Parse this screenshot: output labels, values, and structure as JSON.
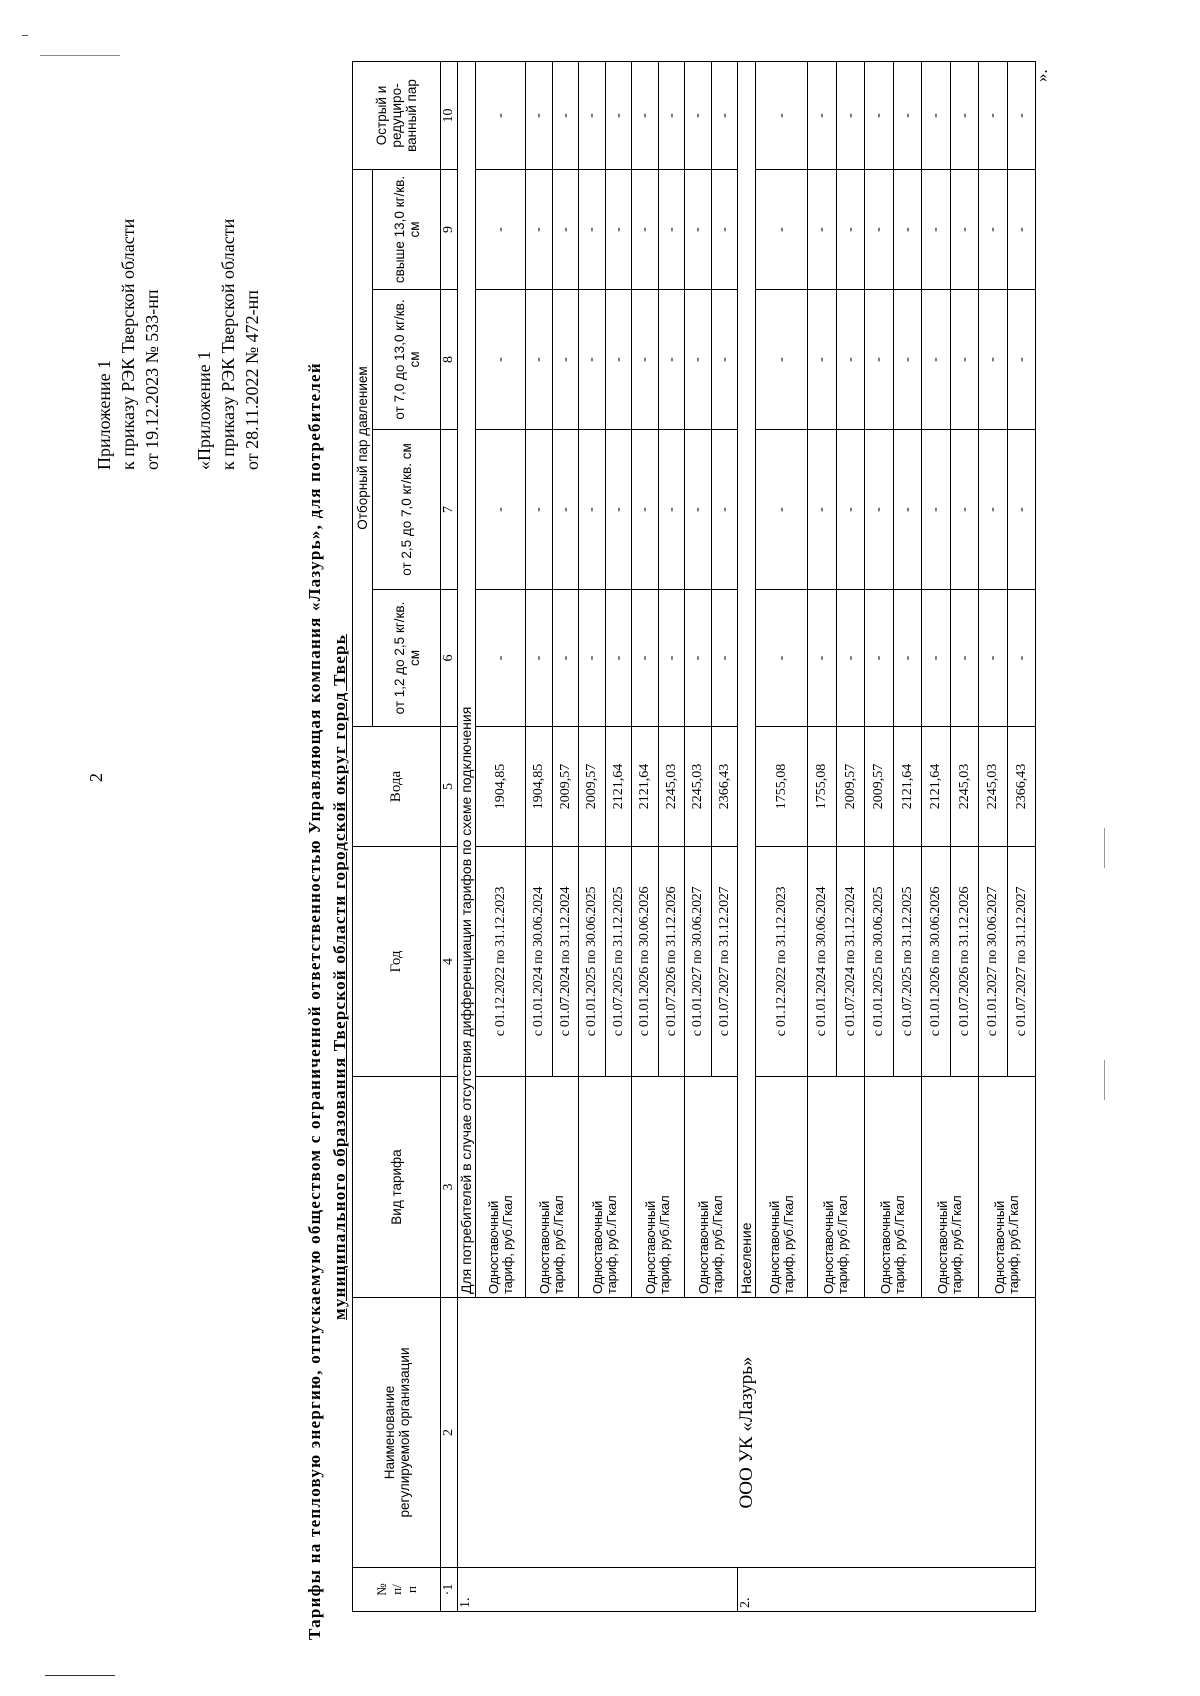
{
  "page_number": "2",
  "annex_new": {
    "line1": "Приложение 1",
    "line2": "к приказу РЭК Тверской области",
    "line3": "от 19.12.2023 № 533-нп"
  },
  "annex_old": {
    "line1": "«Приложение 1",
    "line2": "к приказу РЭК Тверской области",
    "line3": "от 28.11.2022 № 472-нп"
  },
  "title": {
    "line1": "Тарифы на тепловую энергию, отпускаемую обществом с ограниченной ответственностью Управляющая компания «Лазурь», для потребителей",
    "line2": "муниципального образования Тверской области городской округ город Тверь"
  },
  "table": {
    "headers": {
      "col1": "№\nп/\nп",
      "col2": "Наименование\nрегулируемой организации",
      "col3": "Вид тарифа",
      "col4": "Год",
      "col5": "Вода",
      "steam_group": "Отборный пар давлением",
      "col6": "от 1,2 до 2,5 кг/кв. см",
      "col7": "от 2,5 до 7,0 кг/кв. см",
      "col8": "от 7,0 до 13,0 кг/кв. см",
      "col9": "свыше 13,0 кг/кв. см",
      "col10": "Острый и редуциро-ванный пар"
    },
    "column_numbers": [
      "·1",
      "2",
      "3",
      "4",
      "5",
      "6",
      "7",
      "8",
      "9",
      "10"
    ],
    "organization": "ООО УК «Лазурь»",
    "tariff_type": "Одноставочный\nтариф, руб./Гкал",
    "groups": [
      {
        "number": "1.",
        "label": "Для потребителей в случае отсутствия дифференциации тарифов по схеме подключения",
        "rows": [
          {
            "period": "с 01.12.2022 по 31.12.2023",
            "water": "1904,85",
            "p6": "-",
            "p7": "-",
            "p8": "-",
            "p9": "-",
            "p10": "-"
          },
          {
            "period": "с 01.01.2024 по 30.06.2024",
            "water": "1904,85",
            "p6": "-",
            "p7": "-",
            "p8": "-",
            "p9": "-",
            "p10": "-"
          },
          {
            "period": "с 01.07.2024 по 31.12.2024",
            "water": "2009,57",
            "p6": "-",
            "p7": "-",
            "p8": "-",
            "p9": "-",
            "p10": "-"
          },
          {
            "period": "с 01.01.2025 по 30.06.2025",
            "water": "2009,57",
            "p6": "-",
            "p7": "-",
            "p8": "-",
            "p9": "-",
            "p10": "-"
          },
          {
            "period": "с 01.07.2025 по 31.12.2025",
            "water": "2121,64",
            "p6": "-",
            "p7": "-",
            "p8": "-",
            "p9": "-",
            "p10": "-"
          },
          {
            "period": "с 01.01.2026 по 30.06.2026",
            "water": "2121,64",
            "p6": "-",
            "p7": "-",
            "p8": "-",
            "p9": "-",
            "p10": "-"
          },
          {
            "period": "с 01.07.2026 по 31.12.2026",
            "water": "2245,03",
            "p6": "-",
            "p7": "-",
            "p8": "-",
            "p9": "-",
            "p10": "-"
          },
          {
            "period": "с 01.01.2027 по 30.06.2027",
            "water": "2245,03",
            "p6": "-",
            "p7": "-",
            "p8": "-",
            "p9": "-",
            "p10": "-"
          },
          {
            "period": "с 01.07.2027 по 31.12.2027",
            "water": "2366,43",
            "p6": "-",
            "p7": "-",
            "p8": "-",
            "p9": "-",
            "p10": "-"
          }
        ]
      },
      {
        "number": "2.",
        "label": "Население",
        "rows": [
          {
            "period": "с 01.12.2022 по 31.12.2023",
            "water": "1755,08",
            "p6": "-",
            "p7": "-",
            "p8": "-",
            "p9": "-",
            "p10": "-"
          },
          {
            "period": "с 01.01.2024 по 30.06.2024",
            "water": "1755,08",
            "p6": "-",
            "p7": "-",
            "p8": "-",
            "p9": "-",
            "p10": "-"
          },
          {
            "period": "с 01.07.2024 по 31.12.2024",
            "water": "2009,57",
            "p6": "-",
            "p7": "-",
            "p8": "-",
            "p9": "-",
            "p10": "-"
          },
          {
            "period": "с 01.01.2025 по 30.06.2025",
            "water": "2009,57",
            "p6": "-",
            "p7": "-",
            "p8": "-",
            "p9": "-",
            "p10": "-"
          },
          {
            "period": "с 01.07.2025 по 31.12.2025",
            "water": "2121,64",
            "p6": "-",
            "p7": "-",
            "p8": "-",
            "p9": "-",
            "p10": "-"
          },
          {
            "period": "с 01.01.2026 по 30.06.2026",
            "water": "2121,64",
            "p6": "-",
            "p7": "-",
            "p8": "-",
            "p9": "-",
            "p10": "-"
          },
          {
            "period": "с 01.07.2026 по 31.12.2026",
            "water": "2245,03",
            "p6": "-",
            "p7": "-",
            "p8": "-",
            "p9": "-",
            "p10": "-"
          },
          {
            "period": "с 01.01.2027 по 30.06.2027",
            "water": "2245,03",
            "p6": "-",
            "p7": "-",
            "p8": "-",
            "p9": "-",
            "p10": "-"
          },
          {
            "period": "с 01.07.2027 по 31.12.2027",
            "water": "2366,43",
            "p6": "-",
            "p7": "-",
            "p8": "-",
            "p9": "-",
            "p10": "-"
          }
        ]
      }
    ]
  },
  "closing_mark": "»."
}
